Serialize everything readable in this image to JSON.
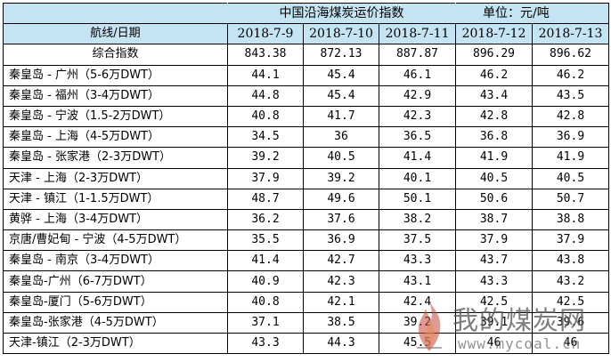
{
  "title": "中国沿海煤炭运价指数",
  "unit": "单位：元/吨",
  "header": {
    "route_label": "航线/日期",
    "dates": [
      "2018-7-9",
      "2018-7-10",
      "2018-7-11",
      "2018-7-12",
      "2018-7-13"
    ]
  },
  "composite": {
    "label": "综合指数",
    "values": [
      "843.38",
      "872.13",
      "887.87",
      "896.29",
      "896.62"
    ]
  },
  "rows": [
    {
      "route": "秦皇岛 - 广州（5-6万DWT）",
      "values": [
        "44.1",
        "45.4",
        "46.1",
        "46.2",
        "46.2"
      ]
    },
    {
      "route": "秦皇岛 - 福州（3-4万DWT）",
      "values": [
        "44.8",
        "45.4",
        "42.9",
        "43.4",
        "43.5"
      ]
    },
    {
      "route": "秦皇岛 - 宁波（1.5-2万DWT）",
      "values": [
        "40.8",
        "41.7",
        "42.3",
        "42.8",
        "42.8"
      ]
    },
    {
      "route": "秦皇岛 - 上海（4-5万DWT）",
      "values": [
        "34.5",
        "36",
        "36.5",
        "36.8",
        "36.9"
      ]
    },
    {
      "route": "秦皇岛 - 张家港（2-3万DWT）",
      "values": [
        "39.2",
        "40.5",
        "41.4",
        "41.9",
        "41.9"
      ]
    },
    {
      "route": "天津 - 上海（2-3万DWT）",
      "values": [
        "37.9",
        "39.2",
        "40.1",
        "40.5",
        "40.5"
      ]
    },
    {
      "route": "天津 - 镇江（1-1.5万DWT）",
      "values": [
        "48.7",
        "49.6",
        "50.1",
        "50.6",
        "50.7"
      ]
    },
    {
      "route": "黄骅 - 上海（3-4万DWT）",
      "values": [
        "36.2",
        "37.6",
        "38.2",
        "38.7",
        "38.8"
      ]
    },
    {
      "route": "京唐/曹妃甸 - 宁波（4-5万DWT）",
      "values": [
        "35.5",
        "36.9",
        "37.5",
        "37.9",
        "37.9"
      ]
    },
    {
      "route": "秦皇岛 - 南京（3-4万DWT）",
      "values": [
        "41.4",
        "42.7",
        "43.3",
        "43.7",
        "43.8"
      ]
    },
    {
      "route": "秦皇岛-广州（6-7万DWT）",
      "values": [
        "40.9",
        "42.3",
        "43.1",
        "43.3",
        "43.2"
      ]
    },
    {
      "route": "秦皇岛-厦门（5-6万DWT）",
      "values": [
        "40.8",
        "42.1",
        "42.4",
        "42.5",
        "42.5"
      ]
    },
    {
      "route": "秦皇岛-张家港（4-5万DWT）",
      "values": [
        "37.1",
        "38.5",
        "39.2",
        "39.1",
        "39.6"
      ]
    },
    {
      "route": "天津-镇江（2-3万DWT）",
      "values": [
        "43.3",
        "44.3",
        "45.5",
        "46",
        "46"
      ]
    }
  ],
  "watermark": {
    "text": "我的煤炭网",
    "url": "www.mycoal.cn",
    "icon": "flame-icon",
    "color": "#6b6b6b"
  },
  "colors": {
    "header_bg": "#c5e4f3",
    "border": "#000000"
  }
}
